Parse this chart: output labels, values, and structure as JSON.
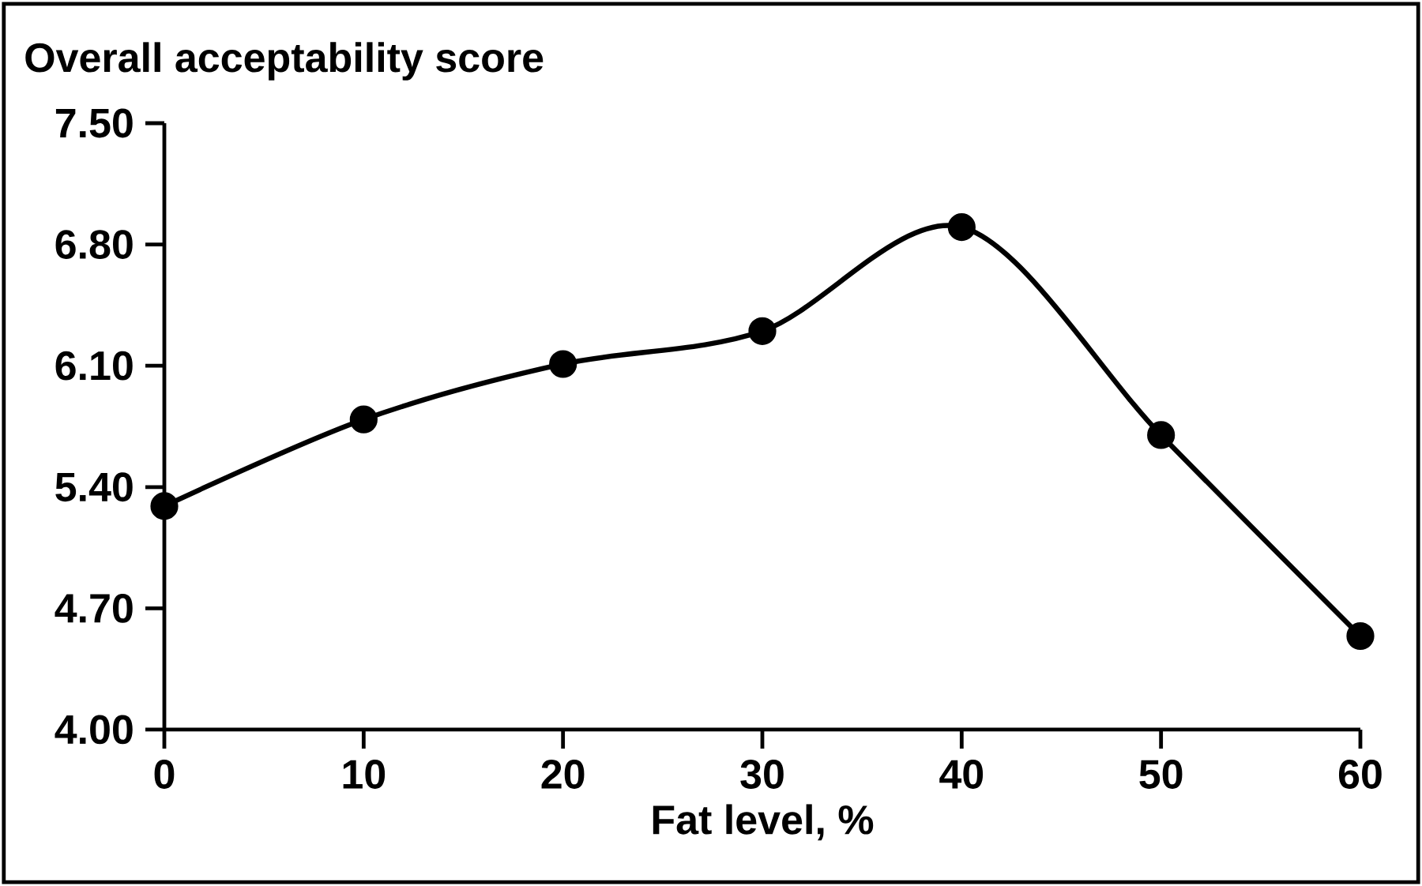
{
  "chart_data": {
    "type": "line",
    "xlabel": "Fat level, %",
    "ylabel": "Overall acceptability score",
    "x": [
      0,
      10,
      20,
      30,
      40,
      50,
      60
    ],
    "series": [
      {
        "color": "#000000",
        "values": [
          5.29,
          5.79,
          6.11,
          6.3,
          6.9,
          5.7,
          4.54
        ]
      }
    ],
    "xlim": [
      0,
      60
    ],
    "xticks": [
      0,
      10,
      20,
      30,
      40,
      50,
      60
    ],
    "ylim": [
      4.0,
      7.5
    ],
    "yticks": [
      {
        "value": 4.0,
        "label": "4.00"
      },
      {
        "value": 4.7,
        "label": "4.70"
      },
      {
        "value": 5.4,
        "label": "5.40"
      },
      {
        "value": 6.1,
        "label": "6.10"
      },
      {
        "value": 6.8,
        "label": "6.80"
      },
      {
        "value": 7.5,
        "label": "7.50"
      }
    ],
    "marker": "circle",
    "line_style": "solid",
    "grid": false,
    "legend": false
  }
}
